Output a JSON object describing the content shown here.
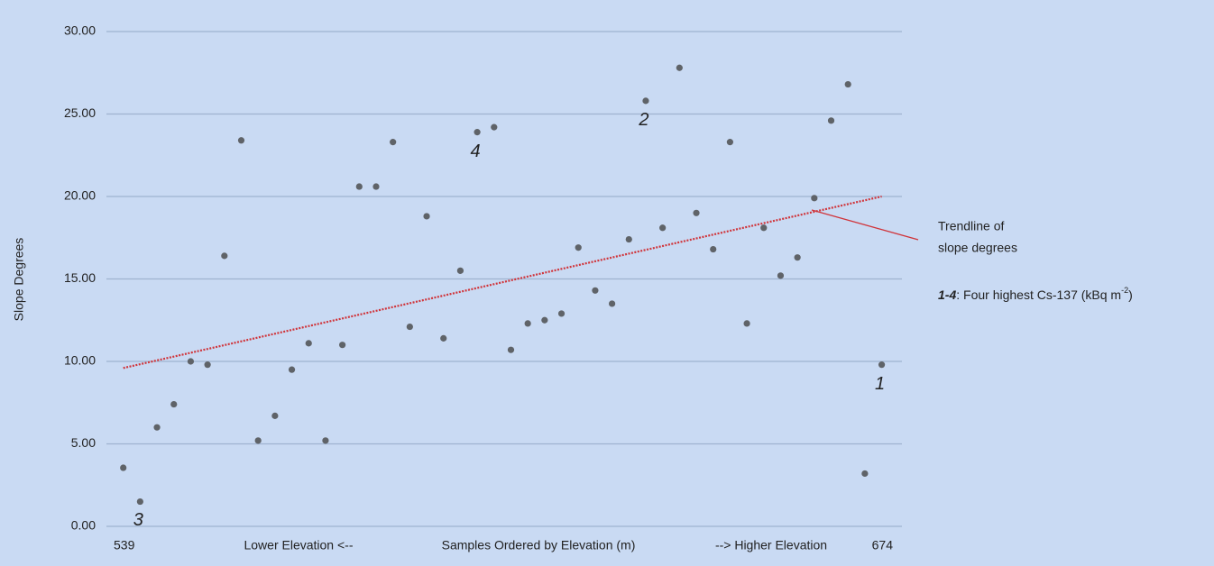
{
  "chart_data": {
    "type": "scatter",
    "y_label": "Slope Degrees",
    "x_labels": [
      "539",
      "Lower Elevation <--",
      "Samples Ordered by Elevation (m)",
      "--> Higher Elevation",
      "674"
    ],
    "ylim": [
      0,
      30
    ],
    "yticks": [
      {
        "value": 0,
        "label": "0.00"
      },
      {
        "value": 5,
        "label": "5.00"
      },
      {
        "value": 10,
        "label": "10.00"
      },
      {
        "value": 15,
        "label": "15.00"
      },
      {
        "value": 20,
        "label": "20.00"
      },
      {
        "value": 25,
        "label": "25.00"
      },
      {
        "value": 30,
        "label": "30.00"
      }
    ],
    "grid": true,
    "xlim": [
      0,
      47.2
    ],
    "x": [
      1,
      2,
      3,
      4,
      5,
      6,
      7,
      8,
      9,
      10,
      11,
      12,
      13,
      14,
      15,
      16,
      17,
      18,
      19,
      20,
      21,
      22,
      23,
      24,
      25,
      26,
      27,
      28,
      29,
      30,
      31,
      32,
      33,
      34,
      35,
      36,
      37,
      38,
      39,
      40,
      41,
      42,
      43,
      44,
      45,
      46
    ],
    "color": "#5f6368",
    "values": [
      3.55,
      1.5,
      6.0,
      7.4,
      10.0,
      9.8,
      16.4,
      23.4,
      5.2,
      6.7,
      9.5,
      11.1,
      5.2,
      11.0,
      20.6,
      20.6,
      23.3,
      12.1,
      18.8,
      11.4,
      15.5,
      23.9,
      24.2,
      10.7,
      12.3,
      12.5,
      12.9,
      16.9,
      14.3,
      13.5,
      17.4,
      25.8,
      18.1,
      27.8,
      19.0,
      16.8,
      23.3,
      12.3,
      18.1,
      15.2,
      16.3,
      19.9,
      24.6,
      26.8,
      3.2,
      9.8
    ],
    "trendline": {
      "x": [
        1,
        46
      ],
      "values": [
        9.6,
        20.0
      ],
      "color": "#d0343a"
    },
    "point_labels": [
      {
        "text": "3",
        "point": 1
      },
      {
        "text": "4",
        "point": 21
      },
      {
        "text": "2",
        "point": 31
      },
      {
        "text": "1",
        "point": 45
      }
    ],
    "legend": {
      "trendline": [
        "Trendline of",
        "slope degrees"
      ],
      "highlight": [
        "1-4",
        ": Four highest Cs-137 (kBq m",
        "-2",
        ")"
      ]
    }
  }
}
